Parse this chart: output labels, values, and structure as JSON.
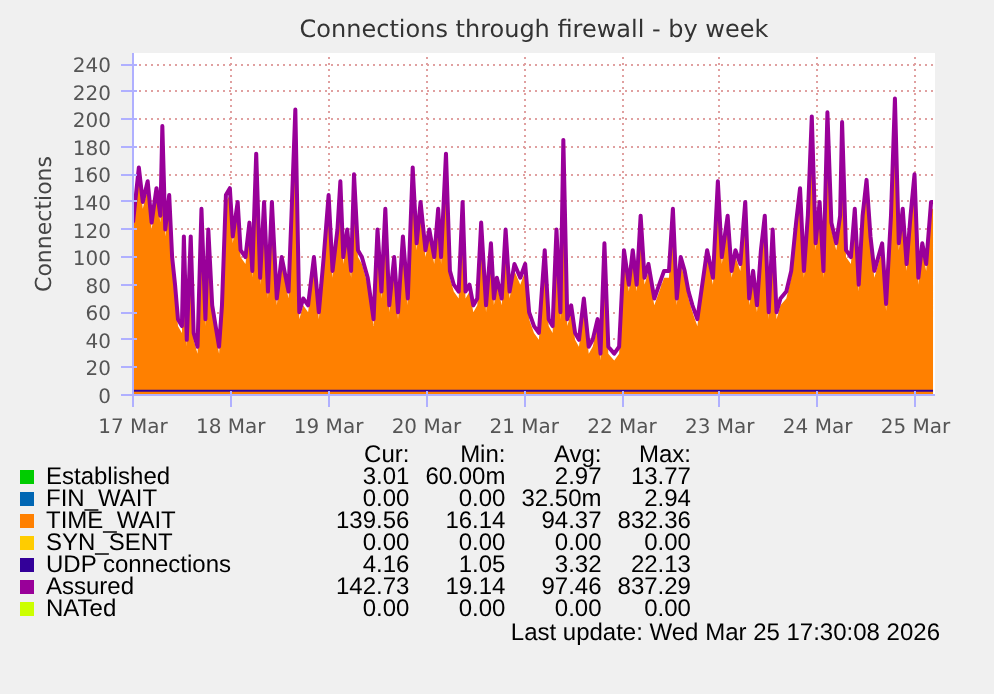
{
  "chart_data": {
    "type": "area",
    "title": "Connections through firewall - by week",
    "ylabel": "Connections",
    "x": [
      "2026-03-17T00:00",
      "2026-03-17T01:26",
      "2026-03-17T02:24",
      "2026-03-17T03:36",
      "2026-03-17T04:34",
      "2026-03-17T05:46",
      "2026-03-17T06:43",
      "2026-03-17T07:12",
      "2026-03-17T07:55",
      "2026-03-17T08:53",
      "2026-03-17T09:36",
      "2026-03-17T10:19",
      "2026-03-17T11:02",
      "2026-03-17T12:00",
      "2026-03-17T12:29",
      "2026-03-17T13:12",
      "2026-03-17T14:10",
      "2026-03-17T14:53",
      "2026-03-17T15:50",
      "2026-03-17T16:48",
      "2026-03-17T17:46",
      "2026-03-17T18:29",
      "2026-03-17T19:26",
      "2026-03-17T21:07",
      "2026-03-17T21:50",
      "2026-03-17T22:48",
      "2026-03-17T23:46",
      "2026-03-18T00:29",
      "2026-03-18T01:41",
      "2026-03-18T02:24",
      "2026-03-18T03:36",
      "2026-03-18T04:34",
      "2026-03-18T05:17",
      "2026-03-18T06:14",
      "2026-03-18T07:12",
      "2026-03-18T08:10",
      "2026-03-18T09:07",
      "2026-03-18T10:05",
      "2026-03-18T11:17",
      "2026-03-18T12:29",
      "2026-03-18T14:10",
      "2026-03-18T14:53",
      "2026-03-18T15:50",
      "2026-03-18T16:48",
      "2026-03-18T17:46",
      "2026-03-18T18:58",
      "2026-03-18T20:24",
      "2026-03-18T21:36",
      "2026-03-18T22:48",
      "2026-03-19T00:00",
      "2026-03-19T00:58",
      "2026-03-19T02:10",
      "2026-03-19T02:53",
      "2026-03-19T03:36",
      "2026-03-19T04:34",
      "2026-03-19T05:31",
      "2026-03-19T06:14",
      "2026-03-19T07:12",
      "2026-03-19T08:10",
      "2026-03-19T09:36",
      "2026-03-19T11:02",
      "2026-03-19T12:00",
      "2026-03-19T12:58",
      "2026-03-19T13:55",
      "2026-03-19T14:53",
      "2026-03-19T16:05",
      "2026-03-19T17:02",
      "2026-03-19T18:14",
      "2026-03-19T19:26",
      "2026-03-19T20:38",
      "2026-03-19T21:36",
      "2026-03-19T22:34",
      "2026-03-19T23:46",
      "2026-03-20T00:43",
      "2026-03-20T01:55",
      "2026-03-20T02:53",
      "2026-03-20T03:36",
      "2026-03-20T04:48",
      "2026-03-20T05:46",
      "2026-03-20T06:43",
      "2026-03-20T07:55",
      "2026-03-20T08:53",
      "2026-03-20T09:36",
      "2026-03-20T10:34",
      "2026-03-20T11:31",
      "2026-03-20T12:29",
      "2026-03-20T13:26",
      "2026-03-20T14:38",
      "2026-03-20T15:50",
      "2026-03-20T16:34",
      "2026-03-20T17:17",
      "2026-03-20T18:29",
      "2026-03-20T19:26",
      "2026-03-20T20:24",
      "2026-03-20T21:36",
      "2026-03-20T23:02",
      "2026-03-21T00:14",
      "2026-03-21T01:12",
      "2026-03-21T02:24",
      "2026-03-21T03:36",
      "2026-03-21T05:02",
      "2026-03-21T06:00",
      "2026-03-21T06:58",
      "2026-03-21T07:55",
      "2026-03-21T08:53",
      "2026-03-21T09:36",
      "2026-03-21T10:34",
      "2026-03-21T11:31",
      "2026-03-21T12:29",
      "2026-03-21T13:26",
      "2026-03-21T14:38",
      "2026-03-21T15:50",
      "2026-03-21T16:48",
      "2026-03-21T18:00",
      "2026-03-21T18:43",
      "2026-03-21T19:41",
      "2026-03-21T20:38",
      "2026-03-21T22:05",
      "2026-03-21T23:17",
      "2026-03-22T00:29",
      "2026-03-22T01:41",
      "2026-03-22T02:38",
      "2026-03-22T03:36",
      "2026-03-22T04:34",
      "2026-03-22T05:31",
      "2026-03-22T06:29",
      "2026-03-22T07:55",
      "2026-03-22T09:07",
      "2026-03-22T10:19",
      "2026-03-22T11:31",
      "2026-03-22T12:29",
      "2026-03-22T13:26",
      "2026-03-22T14:24",
      "2026-03-22T15:22",
      "2026-03-22T16:19",
      "2026-03-22T17:17",
      "2026-03-22T18:29",
      "2026-03-22T19:41",
      "2026-03-22T20:53",
      "2026-03-22T22:19",
      "2026-03-22T23:31",
      "2026-03-23T00:29",
      "2026-03-23T01:55",
      "2026-03-23T02:53",
      "2026-03-23T03:50",
      "2026-03-23T05:02",
      "2026-03-23T06:14",
      "2026-03-23T07:12",
      "2026-03-23T08:10",
      "2026-03-23T09:07",
      "2026-03-23T10:05",
      "2026-03-23T11:02",
      "2026-03-23T12:00",
      "2026-03-23T12:58",
      "2026-03-23T13:55",
      "2026-03-23T14:53",
      "2026-03-23T16:19",
      "2026-03-23T17:31",
      "2026-03-23T18:43",
      "2026-03-23T19:41",
      "2026-03-23T20:38",
      "2026-03-23T21:36",
      "2026-03-23T22:34",
      "2026-03-23T23:31",
      "2026-03-24T00:29",
      "2026-03-24T01:26",
      "2026-03-24T02:24",
      "2026-03-24T03:22",
      "2026-03-24T04:34",
      "2026-03-24T05:31",
      "2026-03-24T06:00",
      "2026-03-24T06:58",
      "2026-03-24T08:10",
      "2026-03-24T09:07",
      "2026-03-24T10:05",
      "2026-03-24T11:02",
      "2026-03-24T12:00",
      "2026-03-24T12:58",
      "2026-03-24T13:55",
      "2026-03-24T14:53",
      "2026-03-24T15:50",
      "2026-03-24T16:48",
      "2026-03-24T18:00",
      "2026-03-24T18:58",
      "2026-03-24T19:55",
      "2026-03-24T20:53",
      "2026-03-24T21:50",
      "2026-03-24T22:48",
      "2026-03-24T23:46",
      "2026-03-25T00:43",
      "2026-03-25T01:41",
      "2026-03-25T02:38",
      "2026-03-25T03:50",
      "2026-03-25T04:19"
    ],
    "series": [
      {
        "name": "Established",
        "color": "#00cc00",
        "x": [
          "2026-03-17T00:00",
          "2026-03-25T04:19"
        ],
        "values": [
          3,
          3
        ]
      },
      {
        "name": "FIN_WAIT",
        "color": "#0066b3",
        "values": [
          null,
          null,
          null,
          null,
          null,
          null,
          null,
          null,
          null,
          null,
          null,
          null,
          null,
          null,
          null,
          null,
          null,
          null,
          null,
          null,
          null,
          null,
          null,
          null,
          null,
          null,
          null,
          null,
          null,
          null,
          null,
          null,
          null,
          null,
          null,
          null,
          null,
          null,
          null,
          null,
          null,
          null,
          null,
          null,
          null,
          null,
          null,
          null,
          null,
          null,
          null,
          null,
          null,
          null,
          null,
          null,
          null,
          null,
          null,
          null,
          null,
          null,
          null,
          null,
          null,
          null,
          null,
          null,
          null,
          null,
          null,
          null,
          null,
          null,
          null,
          null,
          null,
          null,
          null,
          null,
          null,
          null,
          null,
          null,
          null,
          null,
          null,
          null,
          null,
          null,
          null,
          null,
          null,
          null,
          null,
          null,
          null,
          null,
          null,
          null,
          null,
          null,
          null,
          null,
          null,
          null,
          null,
          null,
          null,
          null,
          null,
          null,
          null,
          null,
          null,
          null,
          null,
          null,
          null,
          null,
          null,
          null,
          null,
          null,
          null,
          null,
          null,
          null,
          null,
          null,
          null,
          null,
          null,
          null,
          null,
          null,
          null,
          null,
          null,
          null,
          null,
          null,
          null,
          null,
          null,
          null,
          null,
          null,
          null,
          null,
          null,
          null,
          null,
          null,
          null,
          null,
          null,
          null,
          null,
          null,
          null,
          null,
          null,
          null,
          null,
          null,
          null,
          null,
          null,
          null,
          null,
          null,
          null,
          null,
          null,
          null,
          null,
          null,
          null,
          null,
          null,
          null,
          null,
          null,
          null,
          null,
          null,
          null,
          null,
          null,
          null,
          null,
          null,
          null
        ]
      },
      {
        "name": "TIME_WAIT",
        "color": "#ff8000",
        "values": [
          120,
          160,
          135,
          150,
          120,
          145,
          125,
          190,
          115,
          140,
          95,
          75,
          50,
          45,
          110,
          35,
          110,
          40,
          30,
          130,
          50,
          115,
          60,
          30,
          60,
          140,
          145,
          110,
          135,
          100,
          95,
          120,
          85,
          170,
          80,
          135,
          70,
          135,
          65,
          95,
          70,
          125,
          202,
          55,
          65,
          60,
          95,
          55,
          95,
          140,
          85,
          115,
          150,
          95,
          115,
          85,
          155,
          100,
          95,
          80,
          50,
          115,
          70,
          130,
          60,
          95,
          55,
          110,
          65,
          160,
          105,
          135,
          100,
          115,
          95,
          130,
          95,
          170,
          85,
          75,
          70,
          135,
          70,
          75,
          60,
          65,
          120,
          60,
          105,
          65,
          80,
          65,
          115,
          70,
          90,
          80,
          90,
          55,
          45,
          40,
          100,
          50,
          45,
          115,
          55,
          180,
          50,
          60,
          40,
          35,
          65,
          30,
          35,
          50,
          25,
          105,
          30,
          25,
          30,
          100,
          75,
          100,
          75,
          125,
          80,
          90,
          65,
          75,
          85,
          85,
          130,
          65,
          95,
          85,
          70,
          60,
          50,
          75,
          100,
          80,
          150,
          95,
          125,
          85,
          100,
          90,
          135,
          65,
          85,
          60,
          100,
          125,
          55,
          115,
          55,
          65,
          70,
          85,
          120,
          145,
          85,
          125,
          197,
          105,
          135,
          85,
          200,
          120,
          105,
          125,
          193,
          100,
          95,
          130,
          75,
          125,
          151,
          110,
          85,
          95,
          105,
          61,
          125,
          210,
          105,
          130,
          90,
          125,
          155,
          80,
          105,
          90,
          135,
          135
        ]
      },
      {
        "name": "SYN_SENT",
        "color": "#ffcc00",
        "values": [
          null,
          null,
          null,
          null,
          null,
          null,
          null,
          null,
          null,
          null,
          null,
          null,
          null,
          null,
          null,
          null,
          null,
          null,
          null,
          null,
          null,
          null,
          null,
          null,
          null,
          null,
          null,
          null,
          null,
          null,
          null,
          null,
          null,
          null,
          null,
          null,
          null,
          null,
          null,
          null,
          null,
          null,
          null,
          null,
          null,
          null,
          null,
          null,
          null,
          null,
          null,
          null,
          null,
          null,
          null,
          null,
          null,
          null,
          null,
          null,
          null,
          null,
          null,
          null,
          null,
          null,
          null,
          null,
          null,
          null,
          null,
          null,
          null,
          null,
          null,
          null,
          null,
          null,
          null,
          null,
          null,
          null,
          null,
          null,
          null,
          null,
          null,
          null,
          null,
          null,
          null,
          null,
          null,
          null,
          null,
          null,
          null,
          null,
          null,
          null,
          null,
          null,
          null,
          null,
          null,
          null,
          null,
          null,
          null,
          null,
          null,
          null,
          null,
          null,
          null,
          null,
          null,
          null,
          null,
          null,
          null,
          null,
          null,
          null,
          null,
          null,
          null,
          null,
          null,
          null,
          null,
          null,
          null,
          null,
          null,
          null,
          null,
          null,
          null,
          null,
          null,
          null,
          null,
          null,
          null,
          null,
          null,
          null,
          null,
          null,
          null,
          null,
          null,
          null,
          null,
          null,
          null,
          null,
          null,
          null,
          null,
          null,
          null,
          null,
          null,
          null,
          null,
          null,
          null,
          null,
          null,
          null,
          null,
          null,
          null,
          null,
          null,
          null,
          null,
          null,
          null,
          null,
          null,
          null,
          null,
          null,
          null,
          null,
          null,
          null,
          null,
          null,
          null,
          null
        ]
      },
      {
        "name": "UDP connections",
        "color": "#330099",
        "type": "line",
        "x": [
          "2026-03-17T00:00",
          "2026-03-25T04:19"
        ],
        "values": [
          3,
          3
        ]
      },
      {
        "name": "Assured",
        "color": "#990099",
        "type": "line",
        "values": [
          125,
          165,
          140,
          155,
          125,
          150,
          130,
          195,
          120,
          145,
          100,
          80,
          55,
          50,
          115,
          40,
          115,
          45,
          35,
          135,
          55,
          120,
          65,
          35,
          65,
          145,
          150,
          115,
          140,
          105,
          100,
          125,
          90,
          175,
          85,
          140,
          75,
          140,
          70,
          100,
          75,
          130,
          207,
          60,
          70,
          65,
          100,
          60,
          100,
          145,
          90,
          120,
          155,
          100,
          120,
          90,
          160,
          105,
          100,
          85,
          55,
          120,
          75,
          135,
          65,
          100,
          60,
          115,
          70,
          165,
          110,
          140,
          105,
          120,
          100,
          135,
          100,
          175,
          90,
          80,
          75,
          140,
          75,
          80,
          65,
          70,
          125,
          65,
          110,
          70,
          85,
          70,
          120,
          75,
          95,
          85,
          95,
          60,
          50,
          45,
          105,
          55,
          50,
          120,
          60,
          185,
          55,
          65,
          45,
          40,
          70,
          35,
          40,
          55,
          30,
          110,
          35,
          30,
          35,
          105,
          80,
          105,
          80,
          130,
          85,
          95,
          70,
          80,
          90,
          90,
          135,
          70,
          100,
          90,
          75,
          65,
          55,
          80,
          105,
          85,
          155,
          100,
          130,
          90,
          105,
          95,
          140,
          70,
          90,
          65,
          105,
          130,
          60,
          120,
          60,
          70,
          75,
          90,
          125,
          150,
          90,
          130,
          202,
          110,
          140,
          90,
          205,
          125,
          110,
          130,
          198,
          105,
          100,
          135,
          80,
          130,
          156,
          115,
          90,
          100,
          110,
          66,
          130,
          215,
          110,
          135,
          95,
          130,
          160,
          85,
          110,
          95,
          140,
          140
        ]
      },
      {
        "name": "NATed",
        "color": "#ccff00",
        "type": "line",
        "values": [
          null,
          null,
          null,
          null,
          null,
          null,
          null,
          null,
          null,
          null,
          null,
          null,
          null,
          null,
          null,
          null,
          null,
          null,
          null,
          null,
          null,
          null,
          null,
          null,
          null,
          null,
          null,
          null,
          null,
          null,
          null,
          null,
          null,
          null,
          null,
          null,
          null,
          null,
          null,
          null,
          null,
          null,
          null,
          null,
          null,
          null,
          null,
          null,
          null,
          null,
          null,
          null,
          null,
          null,
          null,
          null,
          null,
          null,
          null,
          null,
          null,
          null,
          null,
          null,
          null,
          null,
          null,
          null,
          null,
          null,
          null,
          null,
          null,
          null,
          null,
          null,
          null,
          null,
          null,
          null,
          null,
          null,
          null,
          null,
          null,
          null,
          null,
          null,
          null,
          null,
          null,
          null,
          null,
          null,
          null,
          null,
          null,
          null,
          null,
          null,
          null,
          null,
          null,
          null,
          null,
          null,
          null,
          null,
          null,
          null,
          null,
          null,
          null,
          null,
          null,
          null,
          null,
          null,
          null,
          null,
          null,
          null,
          null,
          null,
          null,
          null,
          null,
          null,
          null,
          null,
          null,
          null,
          null,
          null,
          null,
          null,
          null,
          null,
          null,
          null,
          null,
          null,
          null,
          null,
          null,
          null,
          null,
          null,
          null,
          null,
          null,
          null,
          null,
          null,
          null,
          null,
          null,
          null,
          null,
          null,
          null,
          null,
          null,
          null,
          null,
          null,
          null,
          null,
          null,
          null,
          null,
          null,
          null,
          null,
          null,
          null,
          null,
          null,
          null,
          null,
          null,
          null,
          null,
          null,
          null,
          null,
          null,
          null,
          null,
          null,
          null,
          null,
          null,
          null
        ]
      }
    ],
    "xlim": [
      "2026-03-17T00:00",
      "2026-03-25T04:48"
    ],
    "xticks": [
      {
        "value": "2026-03-17",
        "label": "17 Mar"
      },
      {
        "value": "2026-03-18",
        "label": "18 Mar"
      },
      {
        "value": "2026-03-19",
        "label": "19 Mar"
      },
      {
        "value": "2026-03-20",
        "label": "20 Mar"
      },
      {
        "value": "2026-03-21",
        "label": "21 Mar"
      },
      {
        "value": "2026-03-22",
        "label": "22 Mar"
      },
      {
        "value": "2026-03-23",
        "label": "23 Mar"
      },
      {
        "value": "2026-03-24",
        "label": "24 Mar"
      },
      {
        "value": "2026-03-25",
        "label": "25 Mar"
      }
    ],
    "ylim": [
      0,
      248
    ],
    "yticks": [
      0,
      20,
      40,
      60,
      80,
      100,
      120,
      140,
      160,
      180,
      200,
      220,
      240
    ],
    "grid": true,
    "line_style": "solid",
    "legend": "bottom",
    "annotations": [
      "Cur:",
      "Min:",
      "Avg:",
      "Max:",
      "3.01",
      "60.00m",
      "2.97",
      "13.77",
      "0.00",
      "0.00",
      "32.50m",
      "2.94",
      "139.56",
      "16.14",
      "94.37",
      "832.36",
      "0.00",
      "0.00",
      "0.00",
      "0.00",
      "4.16",
      "1.05",
      "3.32",
      "22.13",
      "142.73",
      "19.14",
      "97.46",
      "837.29",
      "0.00",
      "0.00",
      "0.00",
      "0.00",
      "Last update: Wed Mar 25 17:30:08 2026"
    ]
  }
}
